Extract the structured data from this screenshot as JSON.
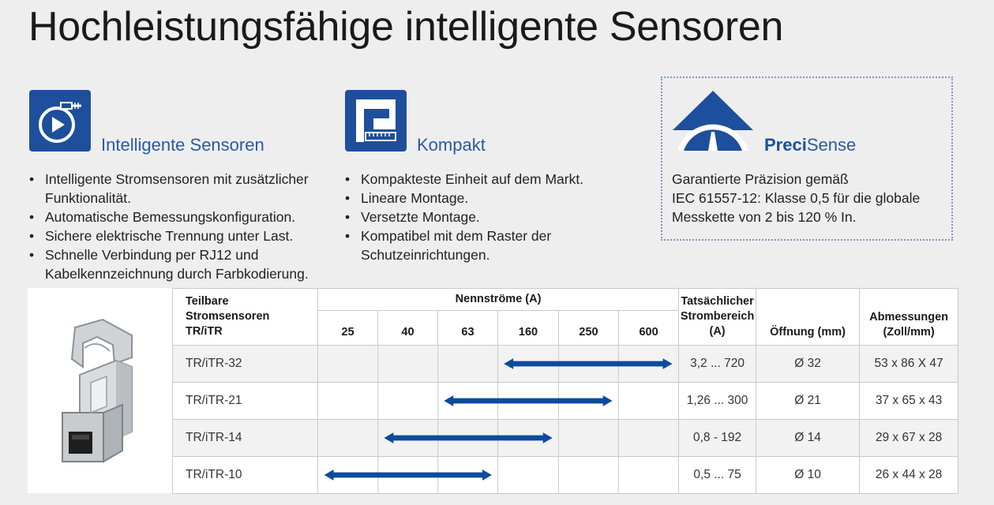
{
  "title": "Hochleistungsfähige intelligente Sensoren",
  "features": {
    "sensors": {
      "heading": "Intelligente Sensoren",
      "bullets": [
        "Intelligente Stromsensoren mit zusätzlicher Funktionalität.",
        "Automatische Bemessungskonfiguration.",
        "Sichere elektrische Trennung unter Last.",
        "Schnelle Verbindung per RJ12 und Kabelkennzeichnung durch Farbkodierung."
      ]
    },
    "compact": {
      "heading": "Kompakt",
      "bullets": [
        "Kompakteste Einheit auf dem Markt.",
        "Lineare Montage.",
        "Versetzte Montage.",
        "Kompatibel mit dem Raster der Schutzeinrichtungen."
      ]
    },
    "precisense": {
      "heading_bold": "Preci",
      "heading_rest": "Sense",
      "text": "Garantierte Präzision gemäß\nIEC 61557-12: Klasse 0,5 für die globale\nMesskette von 2 bis 120 % In."
    }
  },
  "colors": {
    "brand_blue": "#1d4f9c",
    "heading_blue": "#2a5aa6",
    "arrow_blue": "#0d4b9b"
  },
  "table": {
    "headers": {
      "product": "Teilbare\nStromsensoren\nTR/iTR",
      "nominal": "Nennströme (A)",
      "currents": [
        "25",
        "40",
        "63",
        "160",
        "250",
        "600"
      ],
      "actual_range": "Tatsächlicher\nStrombereich\n(A)",
      "opening": "Öffnung (mm)",
      "dimensions": "Abmessungen\n(Zoll/mm)"
    },
    "rows": [
      {
        "name": "TR/iTR-32",
        "range": "3,2 ... 720",
        "opening": "Ø 32",
        "dimensions": "53 x 86 X 47",
        "from_col": 3,
        "to_col": 5
      },
      {
        "name": "TR/iTR-21",
        "range": "1,26 ... 300",
        "opening": "Ø 21",
        "dimensions": "37 x 65 x 43",
        "from_col": 2,
        "to_col": 4
      },
      {
        "name": "TR/iTR-14",
        "range": "0,8 - 192",
        "opening": "Ø 14",
        "dimensions": "29 x 67 x 28",
        "from_col": 1,
        "to_col": 3
      },
      {
        "name": "TR/iTR-10",
        "range": "0,5 ... 75",
        "opening": "Ø 10",
        "dimensions": "26 x 44 x 28",
        "from_col": 0,
        "to_col": 2
      }
    ]
  }
}
